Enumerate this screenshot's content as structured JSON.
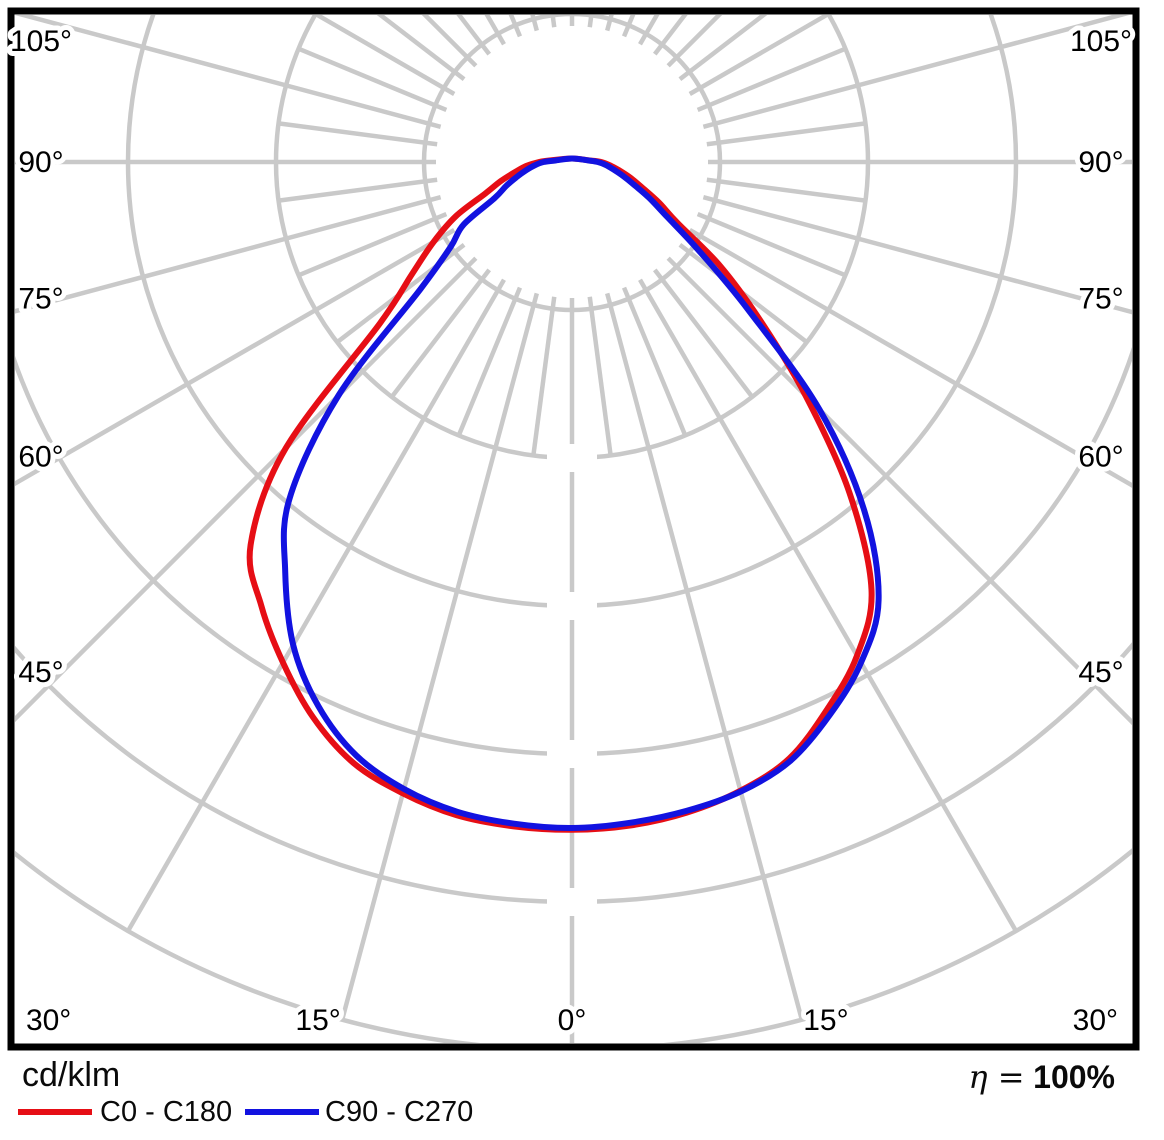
{
  "chart_data": {
    "type": "polar",
    "subtype": "luminous-intensity-distribution",
    "unit_label": "cd/klm",
    "efficiency": {
      "prefix": "η =",
      "value": "100%"
    },
    "angle_labels": [
      {
        "angle": 0,
        "text": "0°"
      },
      {
        "angle": 15,
        "text": "15°"
      },
      {
        "angle": 30,
        "text": "30°"
      },
      {
        "angle": 45,
        "text": "45°"
      },
      {
        "angle": 60,
        "text": "60°"
      },
      {
        "angle": 75,
        "text": "75°"
      },
      {
        "angle": 90,
        "text": "90°"
      },
      {
        "angle": 105,
        "text": "105°"
      }
    ],
    "grid": {
      "rings": 6,
      "major_step_deg": 15,
      "minor_step_deg": 7.5,
      "color": "#c9c9c9",
      "frame_color": "#000000"
    },
    "gamma_deg": [
      0,
      5,
      10,
      15,
      20,
      25,
      30,
      35,
      40,
      45,
      50,
      55,
      60,
      65,
      70,
      75,
      80,
      85,
      90,
      95
    ],
    "series": [
      {
        "name": "C0 - C180",
        "color": "#e60e15",
        "left": [
          0.752,
          0.751,
          0.747,
          0.736,
          0.72,
          0.69,
          0.651,
          0.61,
          0.563,
          0.456,
          0.282,
          0.22,
          0.18,
          0.144,
          0.104,
          0.083,
          0.065,
          0.052,
          0.037,
          0.023
        ],
        "right": [
          0.752,
          0.75,
          0.744,
          0.733,
          0.715,
          0.68,
          0.642,
          0.588,
          0.486,
          0.372,
          0.276,
          0.203,
          0.137,
          0.108,
          0.084,
          0.068,
          0.054,
          0.043,
          0.033,
          0.02
        ]
      },
      {
        "name": "C90 - C270",
        "color": "#1212e0",
        "left": [
          0.75,
          0.748,
          0.743,
          0.731,
          0.711,
          0.676,
          0.628,
          0.563,
          0.495,
          0.372,
          0.223,
          0.167,
          0.141,
          0.096,
          0.079,
          0.064,
          0.052,
          0.042,
          0.032,
          0.019
        ],
        "right": [
          0.75,
          0.747,
          0.742,
          0.734,
          0.718,
          0.687,
          0.651,
          0.602,
          0.512,
          0.394,
          0.259,
          0.175,
          0.124,
          0.096,
          0.074,
          0.059,
          0.047,
          0.038,
          0.029,
          0.019
        ]
      }
    ]
  }
}
